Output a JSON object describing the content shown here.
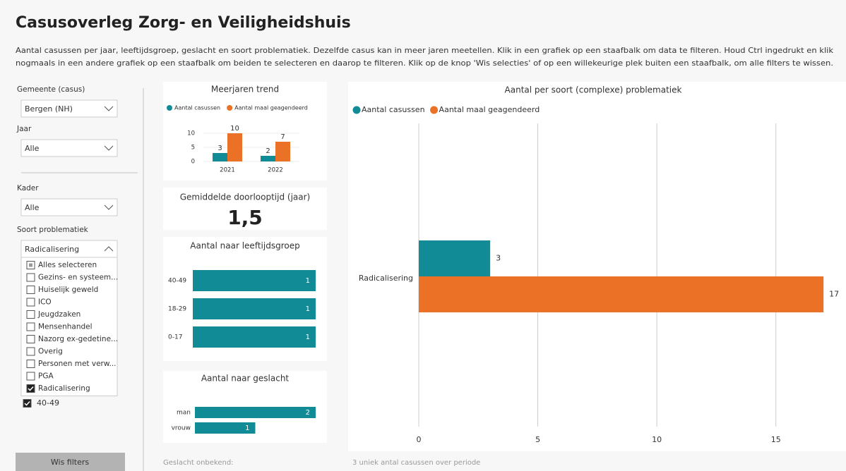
{
  "header": {
    "title": "Casusoverleg Zorg- en Veiligheidshuis",
    "description_lines": [
      "Aantal casussen per jaar, leeftijdsgroep, geslacht en soort problematiek. Dezelfde casus kan in meer jaren meetellen. Klik in een grafiek op een staafbalk om data te filteren. Houd Ctrl ingedrukt en klik",
      "nogmaals in een andere grafiek op een staafbalk om beiden te selecteren en daarop te filteren. Klik op de knop 'Wis selecties' of op een willekeurige plek buiten een staafbalk, om alle filters te wissen."
    ]
  },
  "filters": [
    {
      "label": "Gemeente (casus)",
      "value": "Bergen (NH)",
      "open": false
    },
    {
      "label": "Jaar",
      "value": "Alle",
      "open": false
    },
    {
      "label": "Kader",
      "value": "Alle",
      "open": false
    },
    {
      "label": "Soort problematiek",
      "value": "Radicalisering",
      "open": true
    }
  ],
  "dropdown_options": [
    {
      "label": "Alles selecteren",
      "state": "partial"
    },
    {
      "label": "Gezins- en systeem...",
      "state": "unchecked"
    },
    {
      "label": "Huiselijk geweld",
      "state": "unchecked"
    },
    {
      "label": "ICO",
      "state": "unchecked"
    },
    {
      "label": "Jeugdzaken",
      "state": "unchecked"
    },
    {
      "label": "Mensenhandel",
      "state": "unchecked"
    },
    {
      "label": "Nazorg ex-gedetine...",
      "state": "unchecked"
    },
    {
      "label": "Overig",
      "state": "unchecked"
    },
    {
      "label": "Personen met verw...",
      "state": "unchecked"
    },
    {
      "label": "PGA",
      "state": "unchecked"
    },
    {
      "label": "Radicalisering",
      "state": "checked"
    }
  ],
  "age_selection": {
    "label": "40-49",
    "state": "checked"
  },
  "button": "Wis filters",
  "trend": {
    "type": "bar",
    "title": "Meerjaren trend",
    "categories": [
      "2021",
      "2022"
    ],
    "series": [
      {
        "name": "Aantal casussen",
        "color": "#118b96",
        "values": [
          3,
          2
        ]
      },
      {
        "name": "Aantal maal geagendeerd",
        "color": "#ea7125",
        "values": [
          10,
          7
        ]
      }
    ],
    "ylim": [
      0,
      12
    ],
    "yticks": [
      0,
      5,
      10
    ]
  },
  "kpi": {
    "title": "Gemiddelde doorlooptijd (jaar)",
    "value": "1,5"
  },
  "age": {
    "type": "hbar",
    "title": "Aantal naar leeftijdsgroep",
    "categories": [
      "40-49",
      "18-29",
      "0-17"
    ],
    "values": [
      1,
      1,
      1
    ],
    "color": "#118b96",
    "xlim": [
      0,
      1
    ]
  },
  "gender": {
    "type": "hbar",
    "title": "Aantal naar geslacht",
    "categories": [
      "man",
      "vrouw"
    ],
    "values": [
      2,
      1
    ],
    "color": "#118b96",
    "xlim": [
      0,
      2
    ]
  },
  "main": {
    "type": "hbar",
    "title": "Aantal per soort (complexe) problematiek",
    "categories": [
      "Radicalisering"
    ],
    "series": [
      {
        "name": "Aantal casussen",
        "color": "#118b96",
        "values": [
          3
        ]
      },
      {
        "name": "Aantal maal geagendeerd",
        "color": "#ea7125",
        "values": [
          17
        ]
      }
    ],
    "xlim": [
      0,
      17.5
    ],
    "xticks": [
      0,
      5,
      10,
      15
    ],
    "grid": true
  },
  "footers": {
    "gender_note": "Geslacht onbekend:",
    "main_note": "3 uniek antal casussen over periode"
  }
}
